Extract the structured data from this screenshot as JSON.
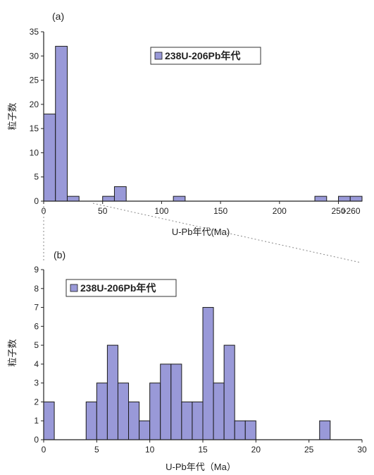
{
  "chart_data": [
    {
      "type": "bar",
      "panel_label": "(a)",
      "ylabel": "粒子数",
      "xlabel": "U-Pb年代(Ma)",
      "ylim": [
        0,
        35
      ],
      "yticks": [
        0,
        5,
        10,
        15,
        20,
        25,
        30,
        35
      ],
      "xlim": [
        0,
        270
      ],
      "xticks": [
        0,
        50,
        100,
        150,
        200,
        250
      ],
      "xtick_labels": [
        "0",
        "50",
        "100",
        "150",
        "200",
        "250"
      ],
      "extra_xtick_label": ">260",
      "bin_width": 10,
      "legend": {
        "label": "238U-206Pb年代",
        "position": "top-center"
      },
      "series": [
        {
          "bins": [
            {
              "x0": 0,
              "x1": 10,
              "count": 18
            },
            {
              "x0": 10,
              "x1": 20,
              "count": 32
            },
            {
              "x0": 20,
              "x1": 30,
              "count": 1
            },
            {
              "x0": 50,
              "x1": 60,
              "count": 1
            },
            {
              "x0": 60,
              "x1": 70,
              "count": 3
            },
            {
              "x0": 110,
              "x1": 120,
              "count": 1
            },
            {
              "x0": 230,
              "x1": 240,
              "count": 1
            },
            {
              "x0": 250,
              "x1": 260,
              "count": 1
            },
            {
              "x0": 260,
              "x1": 270,
              "count": 1
            }
          ]
        }
      ],
      "bar_color": "#9999d8",
      "bar_edge": "#1a1a1a"
    },
    {
      "type": "bar",
      "panel_label": "(b)",
      "ylabel": "粒子数",
      "xlabel": "U-Pb年代（Ma）",
      "ylim": [
        0,
        9
      ],
      "yticks": [
        0,
        1,
        2,
        3,
        4,
        5,
        6,
        7,
        8,
        9
      ],
      "xlim": [
        0,
        30
      ],
      "xticks": [
        0,
        5,
        10,
        15,
        20,
        25,
        30
      ],
      "xtick_labels": [
        "0",
        "5",
        "10",
        "15",
        "20",
        "25",
        "30"
      ],
      "bin_width": 1,
      "legend": {
        "label": "238U-206Pb年代",
        "position": "top-left"
      },
      "series": [
        {
          "bins": [
            {
              "x0": 0,
              "x1": 1,
              "count": 2
            },
            {
              "x0": 4,
              "x1": 5,
              "count": 2
            },
            {
              "x0": 5,
              "x1": 6,
              "count": 3
            },
            {
              "x0": 6,
              "x1": 7,
              "count": 5
            },
            {
              "x0": 7,
              "x1": 8,
              "count": 3
            },
            {
              "x0": 8,
              "x1": 9,
              "count": 2
            },
            {
              "x0": 9,
              "x1": 10,
              "count": 1
            },
            {
              "x0": 10,
              "x1": 11,
              "count": 3
            },
            {
              "x0": 11,
              "x1": 12,
              "count": 4
            },
            {
              "x0": 12,
              "x1": 13,
              "count": 4
            },
            {
              "x0": 13,
              "x1": 14,
              "count": 2
            },
            {
              "x0": 14,
              "x1": 15,
              "count": 2
            },
            {
              "x0": 15,
              "x1": 16,
              "count": 7
            },
            {
              "x0": 16,
              "x1": 17,
              "count": 3
            },
            {
              "x0": 17,
              "x1": 18,
              "count": 5
            },
            {
              "x0": 18,
              "x1": 19,
              "count": 1
            },
            {
              "x0": 19,
              "x1": 20,
              "count": 1
            },
            {
              "x0": 26,
              "x1": 27,
              "count": 1
            }
          ]
        }
      ],
      "bar_color": "#9999d8",
      "bar_edge": "#1a1a1a"
    }
  ]
}
